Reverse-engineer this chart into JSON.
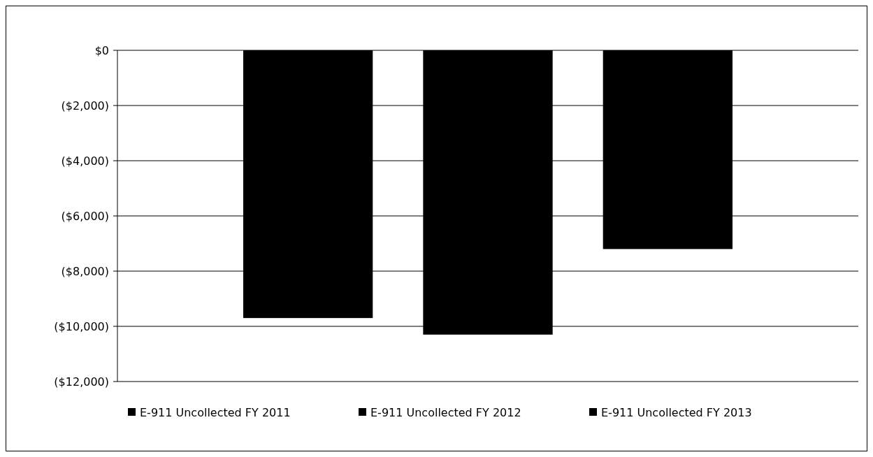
{
  "chart_data": {
    "type": "bar",
    "categories": [
      null
    ],
    "series": [
      {
        "name": "E-911 Uncollected FY 2011",
        "color": "#000000",
        "values": [
          -9700
        ]
      },
      {
        "name": "E-911 Uncollected FY 2012",
        "color": "#000000",
        "values": [
          -10300
        ]
      },
      {
        "name": "E-911 Uncollected FY 2013",
        "color": "#000000",
        "values": [
          -7200
        ]
      }
    ],
    "ylim": [
      -12000,
      0
    ],
    "yticks": [
      {
        "value": 0,
        "label": "$0"
      },
      {
        "value": -2000,
        "label": "($2,000)"
      },
      {
        "value": -4000,
        "label": "($4,000)"
      },
      {
        "value": -6000,
        "label": "($6,000)"
      },
      {
        "value": -8000,
        "label": "($8,000)"
      },
      {
        "value": -10000,
        "label": "($10,000)"
      },
      {
        "value": -12000,
        "label": "($12,000)"
      }
    ],
    "grid": "y",
    "legend": "bottom"
  }
}
